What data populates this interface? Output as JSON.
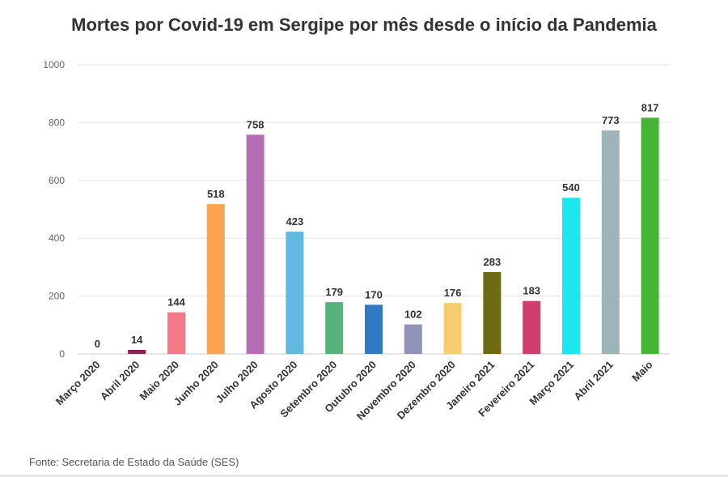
{
  "chart_data": {
    "type": "bar",
    "title": "Mortes por Covid-19 em Sergipe por mês desde o início da Pandemia",
    "xlabel": "",
    "ylabel": "",
    "ylim": [
      0,
      1000
    ],
    "yticks": [
      0,
      200,
      400,
      600,
      800,
      1000
    ],
    "categories": [
      "Março 2020",
      "Abril 2020",
      "Maio 2020",
      "Junho 2020",
      "Julho 2020",
      "Agosto 2020",
      "Setembro 2020",
      "Outubro 2020",
      "Novembro 2020",
      "Dezembro 2020",
      "Janeiro 2021",
      "Fevereiro 2021",
      "Março 2021",
      "Abril 2021",
      "Maio"
    ],
    "values": [
      0,
      14,
      144,
      518,
      758,
      423,
      179,
      170,
      102,
      176,
      283,
      183,
      540,
      773,
      817
    ],
    "colors": [
      "#f4a9a0",
      "#8b1f55",
      "#f27a86",
      "#fba34e",
      "#b56db6",
      "#62b9df",
      "#56b47a",
      "#2f79c2",
      "#8f93b8",
      "#f5cd6e",
      "#6e6a12",
      "#cf3d6d",
      "#1ee6ee",
      "#9fb3bb",
      "#46b534"
    ],
    "grid": true,
    "legend": "none"
  },
  "source": "Fonte: Secretaria de Estado da Saúde (SES)"
}
